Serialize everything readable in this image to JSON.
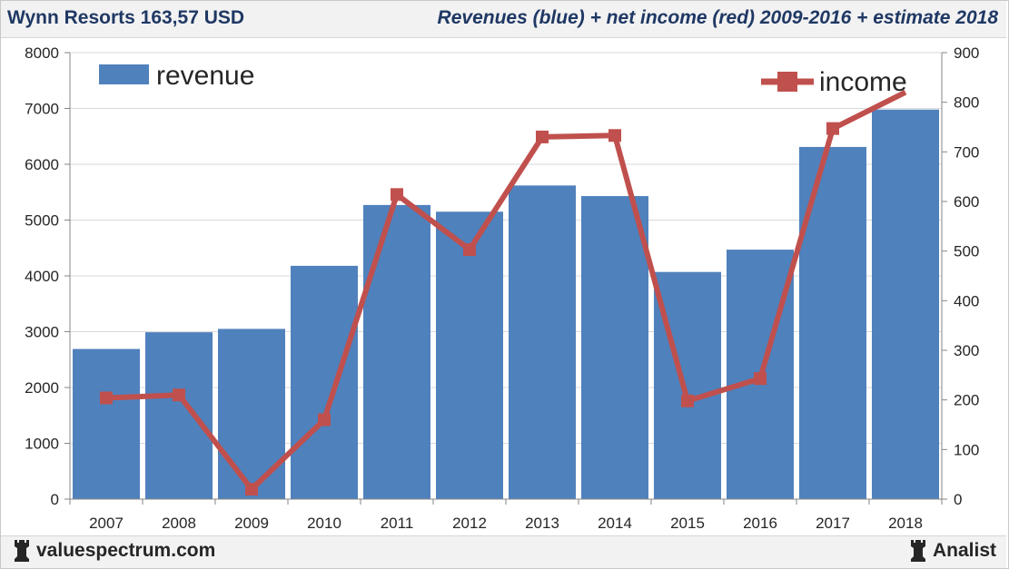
{
  "header": {
    "left_title": "Wynn Resorts 163,57 USD",
    "right_title": "Revenues (blue) + net income (red) 2009-2016 + estimate 2018"
  },
  "footer": {
    "left_brand": "valuespectrum.com",
    "right_brand": "Analist",
    "left_icon": "rook-icon",
    "right_icon": "rook-icon"
  },
  "colors": {
    "revenue_bar": "#4f81bd",
    "income_line": "#c0504d",
    "income_marker": "#c0504d"
  },
  "chart_data": {
    "type": "bar+line",
    "title": "Revenues (blue) + net income (red) 2009-2016 + estimate 2018",
    "categories": [
      "2007",
      "2008",
      "2009",
      "2010",
      "2011",
      "2012",
      "2013",
      "2014",
      "2015",
      "2016",
      "2017",
      "2018"
    ],
    "series": [
      {
        "name": "revenue",
        "type": "bar",
        "axis": "left",
        "values": [
          2690,
          2990,
          3050,
          4180,
          5270,
          5150,
          5620,
          5430,
          4070,
          4470,
          6310,
          6980
        ]
      },
      {
        "name": "income",
        "type": "line",
        "axis": "right",
        "values": [
          204,
          210,
          20,
          160,
          614,
          503,
          730,
          733,
          198,
          243,
          747,
          820
        ]
      }
    ],
    "y_left": {
      "min": 0,
      "max": 8000,
      "ticks": [
        "0",
        "1000",
        "2000",
        "3000",
        "4000",
        "5000",
        "6000",
        "7000",
        "8000"
      ]
    },
    "y_right": {
      "min": 0,
      "max": 900,
      "ticks": [
        "0",
        "100",
        "200",
        "300",
        "400",
        "500",
        "600",
        "700",
        "800",
        "900"
      ]
    },
    "grid": true,
    "legend": [
      {
        "label": "revenue",
        "position": "top-left"
      },
      {
        "label": "income",
        "position": "top-right"
      }
    ]
  }
}
